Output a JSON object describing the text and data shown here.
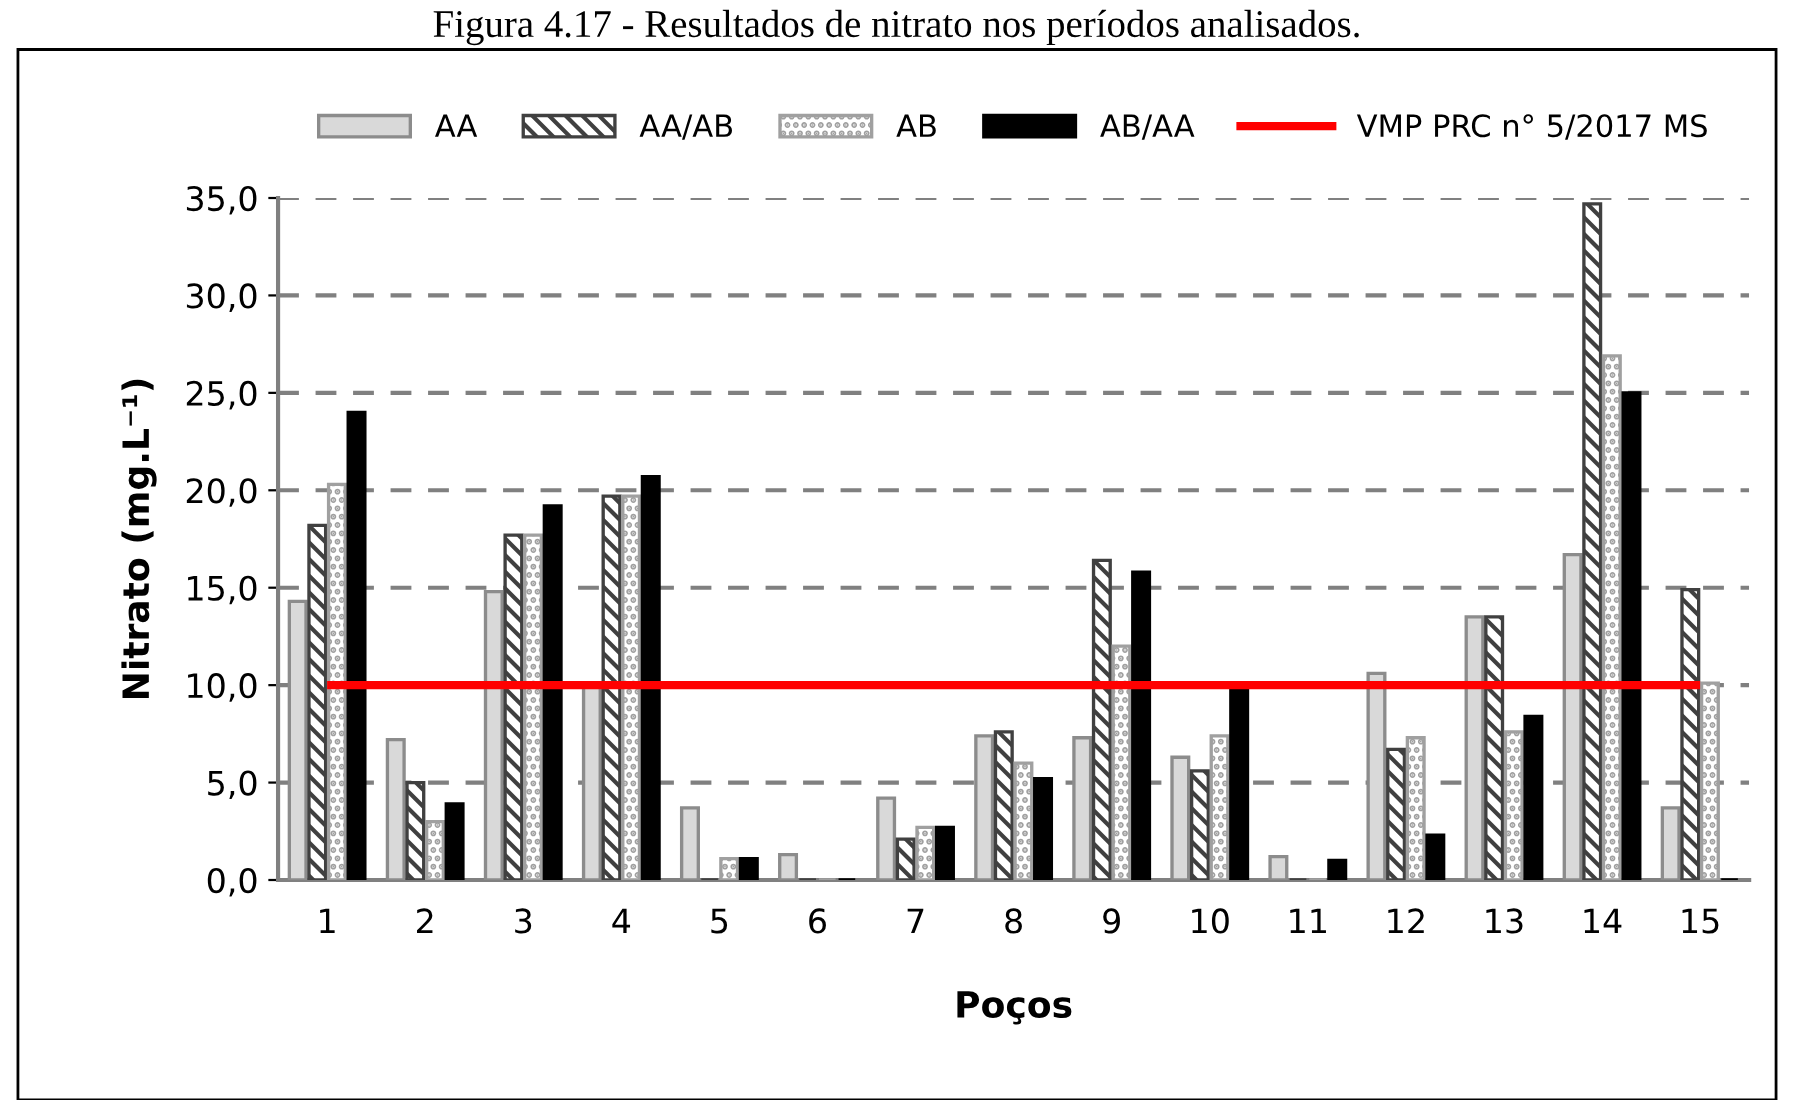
{
  "chart_data": {
    "type": "bar",
    "title": "Figura 4.17 - Resultados de nitrato nos períodos analisados.",
    "xlabel": "Poços",
    "ylabel": "Nitrato (mg.L⁻¹)",
    "categories": [
      "1",
      "2",
      "3",
      "4",
      "5",
      "6",
      "7",
      "8",
      "9",
      "10",
      "11",
      "12",
      "13",
      "14",
      "15"
    ],
    "series": [
      {
        "name": "AA",
        "color": "#d9d9d9",
        "values": [
          14.3,
          7.2,
          14.8,
          9.9,
          3.7,
          1.3,
          4.2,
          7.4,
          7.3,
          6.3,
          1.2,
          10.6,
          13.5,
          16.7,
          3.7
        ]
      },
      {
        "name": "AA/AB",
        "color": "#404040",
        "values": [
          18.2,
          5.0,
          17.7,
          19.7,
          0,
          0,
          2.1,
          7.6,
          16.4,
          5.6,
          0,
          6.7,
          13.5,
          34.7,
          14.9
        ]
      },
      {
        "name": "AB",
        "color": "#a0a0a0",
        "values": [
          20.3,
          3.0,
          17.7,
          19.7,
          1.1,
          0,
          2.7,
          6.0,
          12.0,
          7.4,
          0,
          7.3,
          7.6,
          26.9,
          10.1
        ]
      },
      {
        "name": "AB/AA",
        "color": "#000000",
        "values": [
          24.0,
          3.9,
          19.2,
          20.7,
          1.1,
          0,
          2.7,
          5.2,
          15.8,
          9.8,
          1.0,
          2.3,
          8.4,
          25.0,
          0
        ]
      }
    ],
    "ref_lines": [
      {
        "axis": "y",
        "value": 10,
        "label": "VMP PRC n° 5/2017 MS",
        "color": "#ff0000"
      }
    ],
    "ylim": [
      0,
      35
    ],
    "yticks": [
      {
        "value": 0,
        "label": "0,0"
      },
      {
        "value": 5,
        "label": "5,0"
      },
      {
        "value": 10,
        "label": "10,0"
      },
      {
        "value": 15,
        "label": "15,0"
      },
      {
        "value": 20,
        "label": "20,0"
      },
      {
        "value": 25,
        "label": "25,0"
      },
      {
        "value": 30,
        "label": "30,0"
      },
      {
        "value": 35,
        "label": "35,0"
      }
    ],
    "grid": "y",
    "legend": "top"
  }
}
